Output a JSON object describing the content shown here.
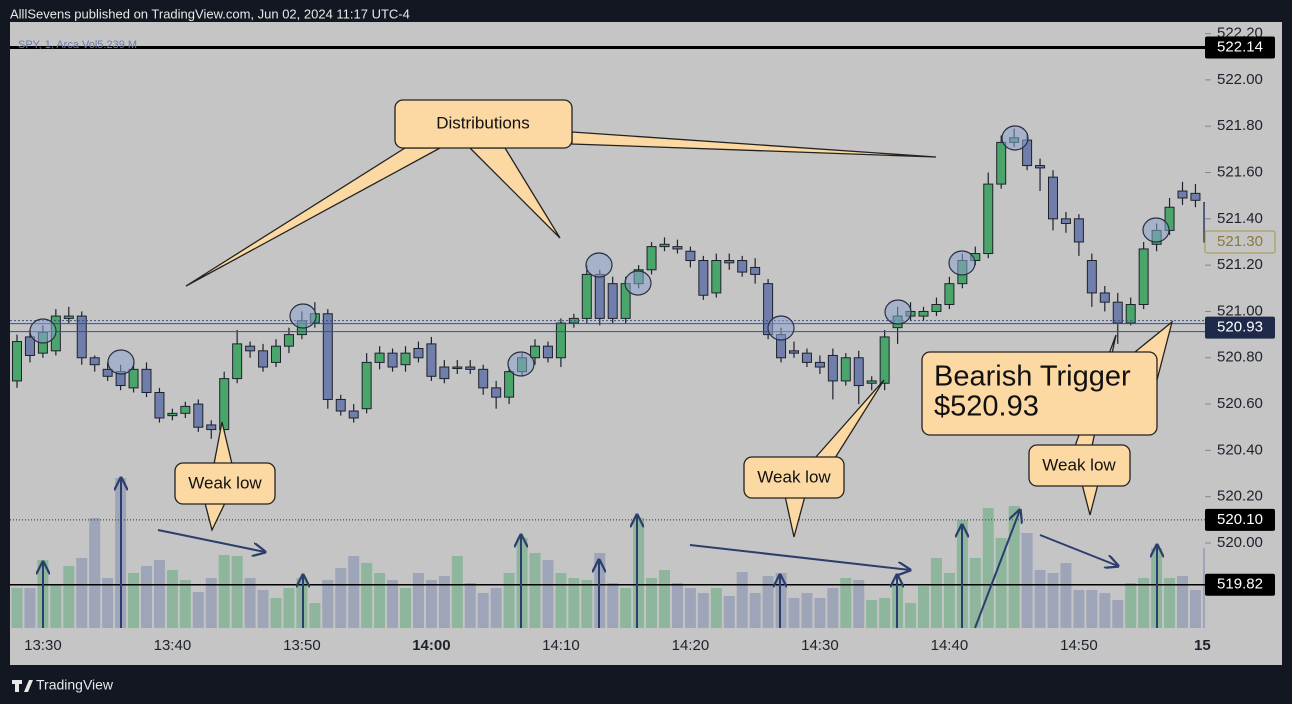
{
  "header": "AlllSevens published on TradingView.com, Jun 02, 2024 11:17 UTC-4",
  "footer": "TradingView",
  "chart_data": {
    "type": "candlestick",
    "legend": "SPY, 1, Arca Vol5.239 M",
    "categories": [
      null,
      null,
      "13:30",
      null,
      null,
      null,
      null,
      null,
      null,
      null,
      null,
      null,
      "13:40",
      null,
      null,
      null,
      null,
      null,
      null,
      null,
      null,
      null,
      "13:50",
      null,
      null,
      null,
      null,
      null,
      null,
      null,
      null,
      null,
      "14:00",
      null,
      null,
      null,
      null,
      null,
      null,
      null,
      null,
      null,
      "14:10",
      null,
      null,
      null,
      null,
      null,
      null,
      null,
      null,
      null,
      "14:20",
      null,
      null,
      null,
      null,
      null,
      null,
      null,
      null,
      null,
      "14:30",
      null,
      null,
      null,
      null,
      null,
      null,
      null,
      null,
      null,
      "14:40",
      null,
      null,
      null,
      null,
      null,
      null,
      null,
      null,
      null,
      "14:50",
      null,
      null,
      null,
      null,
      null,
      null,
      null,
      null,
      null,
      "15"
    ],
    "open": [
      520.7,
      520.89,
      520.82,
      520.83,
      520.97,
      520.98,
      520.8,
      520.75,
      520.74,
      520.67,
      520.75,
      520.65,
      520.55,
      520.56,
      520.6,
      520.51,
      520.49,
      520.71,
      520.85,
      520.83,
      520.78,
      520.85,
      520.9,
      520.95,
      520.99,
      520.62,
      520.57,
      520.58,
      520.78,
      520.82,
      520.77,
      520.84,
      520.86,
      520.76,
      520.76,
      520.76,
      520.75,
      520.67,
      520.63,
      520.74,
      520.8,
      520.85,
      520.8,
      520.95,
      520.97,
      521.16,
      521.12,
      520.97,
      521.12,
      521.18,
      521.28,
      521.28,
      521.26,
      521.22,
      521.08,
      521.22,
      521.22,
      521.19,
      521.12,
      520.9,
      520.83,
      520.82,
      520.78,
      520.81,
      520.7,
      520.8,
      520.69,
      520.69,
      520.93,
      520.98,
      520.98,
      521.0,
      521.03,
      521.12,
      521.22,
      521.25,
      521.55,
      521.73,
      521.74,
      521.63,
      521.58,
      521.4,
      521.4,
      521.22,
      521.08,
      521.04,
      520.95,
      521.03,
      521.29,
      521.35,
      521.52,
      521.51,
      521.47
    ],
    "high": [
      520.9,
      520.92,
      520.94,
      521.01,
      521.02,
      521.0,
      520.81,
      520.78,
      520.77,
      520.78,
      520.78,
      520.67,
      520.58,
      520.61,
      520.62,
      520.53,
      520.74,
      520.92,
      520.87,
      520.86,
      520.88,
      520.93,
      521.0,
      521.04,
      521.01,
      520.64,
      520.6,
      520.82,
      520.85,
      520.84,
      520.85,
      520.87,
      520.89,
      520.79,
      520.79,
      520.79,
      520.77,
      520.7,
      520.76,
      520.82,
      520.88,
      520.87,
      520.97,
      520.99,
      521.2,
      521.18,
      521.15,
      521.15,
      521.2,
      521.3,
      521.32,
      521.31,
      521.28,
      521.24,
      521.25,
      521.25,
      521.24,
      521.23,
      521.14,
      520.93,
      520.87,
      520.84,
      520.81,
      520.84,
      520.82,
      520.83,
      520.72,
      520.92,
      521.02,
      521.04,
      521.02,
      521.06,
      521.15,
      521.25,
      521.28,
      521.6,
      521.76,
      521.79,
      521.77,
      521.66,
      521.61,
      521.43,
      521.42,
      521.25,
      521.11,
      521.08,
      521.06,
      521.3,
      521.38,
      521.49,
      521.56,
      521.55,
      521.5
    ],
    "low": [
      520.67,
      520.78,
      520.8,
      520.81,
      520.95,
      520.77,
      520.74,
      520.7,
      520.66,
      520.65,
      520.63,
      520.52,
      520.53,
      520.54,
      520.48,
      520.45,
      520.47,
      520.69,
      520.8,
      520.74,
      520.76,
      520.82,
      520.88,
      520.93,
      520.58,
      520.55,
      520.52,
      520.56,
      520.75,
      520.74,
      520.74,
      520.78,
      520.7,
      520.69,
      520.73,
      520.73,
      520.64,
      520.58,
      520.6,
      520.72,
      520.77,
      520.78,
      520.76,
      520.93,
      520.95,
      520.94,
      520.95,
      520.95,
      521.1,
      521.16,
      521.26,
      521.25,
      521.19,
      521.05,
      521.06,
      521.18,
      521.15,
      521.12,
      520.88,
      520.78,
      520.8,
      520.76,
      520.73,
      520.62,
      520.68,
      520.6,
      520.66,
      520.66,
      520.86,
      520.96,
      520.96,
      520.98,
      521.01,
      521.1,
      521.2,
      521.23,
      521.53,
      521.71,
      521.61,
      521.52,
      521.35,
      521.34,
      521.24,
      521.02,
      521.0,
      520.86,
      520.94,
      521.01,
      521.26,
      521.33,
      521.46,
      521.45,
      521.28
    ],
    "close": [
      520.87,
      520.81,
      520.91,
      520.98,
      520.98,
      520.8,
      520.77,
      520.72,
      520.68,
      520.75,
      520.65,
      520.54,
      520.56,
      520.59,
      520.5,
      520.49,
      520.71,
      520.86,
      520.83,
      520.76,
      520.85,
      520.9,
      520.96,
      520.99,
      520.62,
      520.57,
      520.54,
      520.78,
      520.82,
      520.76,
      520.82,
      520.8,
      520.72,
      520.71,
      520.76,
      520.75,
      520.67,
      520.63,
      520.74,
      520.8,
      520.85,
      520.8,
      520.95,
      520.97,
      521.16,
      520.97,
      520.97,
      521.12,
      521.18,
      521.28,
      521.29,
      521.27,
      521.22,
      521.07,
      521.22,
      521.21,
      521.17,
      521.16,
      520.9,
      520.8,
      520.82,
      520.78,
      520.76,
      520.7,
      520.8,
      520.68,
      520.7,
      520.89,
      520.98,
      521.0,
      521.0,
      521.03,
      521.12,
      521.22,
      521.25,
      521.55,
      521.73,
      521.75,
      521.63,
      521.62,
      521.4,
      521.38,
      521.3,
      521.08,
      521.04,
      520.95,
      521.03,
      521.27,
      521.35,
      521.45,
      521.49,
      521.48,
      521.3
    ],
    "volume": [
      40,
      40,
      68,
      44,
      62,
      70,
      110,
      50,
      150,
      55,
      62,
      68,
      58,
      48,
      36,
      50,
      73,
      72,
      50,
      38,
      30,
      40,
      50,
      25,
      48,
      60,
      72,
      65,
      55,
      48,
      40,
      55,
      48,
      52,
      72,
      45,
      35,
      40,
      55,
      90,
      75,
      68,
      55,
      50,
      48,
      75,
      45,
      40,
      110,
      50,
      58,
      45,
      40,
      35,
      40,
      32,
      56,
      35,
      52,
      55,
      30,
      35,
      30,
      40,
      50,
      48,
      28,
      30,
      45,
      25,
      42,
      70,
      55,
      108,
      70,
      120,
      90,
      122,
      95,
      58,
      55,
      65,
      38,
      38,
      35,
      28,
      45,
      50,
      80,
      50,
      52,
      38,
      80
    ],
    "volume_lim": [
      0,
      160
    ],
    "up_color": "#4aa56a",
    "down_color": "#6f7eaa",
    "ylim": [
      519.633,
      522.25
    ],
    "yticks": [
      {
        "value": 522.2,
        "label": "522.20"
      },
      {
        "value": 522.0,
        "label": "522.00"
      },
      {
        "value": 521.8,
        "label": "521.80"
      },
      {
        "value": 521.6,
        "label": "521.60"
      },
      {
        "value": 521.4,
        "label": "521.40"
      },
      {
        "value": 521.2,
        "label": "521.20"
      },
      {
        "value": 521.0,
        "label": "521.00"
      },
      {
        "value": 520.8,
        "label": "520.80"
      },
      {
        "value": 520.6,
        "label": "520.60"
      },
      {
        "value": 520.4,
        "label": "520.40"
      },
      {
        "value": 520.2,
        "label": "520.20"
      },
      {
        "value": 520.0,
        "label": "520.00"
      }
    ],
    "levels": [
      {
        "value": 522.14,
        "label": "522.14"
      },
      {
        "value": 520.93,
        "label": "520.93"
      },
      {
        "value": 520.1,
        "label": "520.10"
      },
      {
        "value": 519.82,
        "label": "519.82"
      }
    ],
    "last_price": {
      "value": 521.3,
      "label": "521.30"
    },
    "annotations": [
      "Distributions",
      "Weak low",
      "Weak low",
      "Weak low",
      "Bearish Trigger",
      "$520.93"
    ]
  }
}
